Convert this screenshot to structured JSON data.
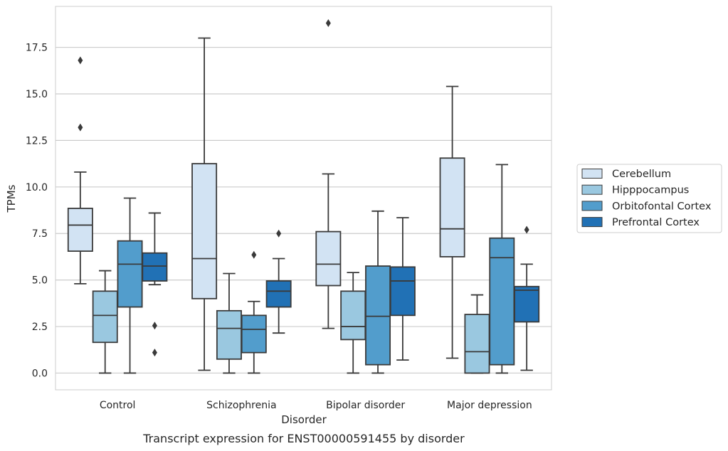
{
  "caption": "Transcript expression for ENST00000591455 by disorder",
  "colors": {
    "Cerebellum": "#d2e3f3",
    "Hipppocampus": "#9ac8e0",
    "Orbitofontal Cortex": "#529dcc",
    "Prefrontal Cortex": "#2171b5",
    "edge": "#3a3a3a",
    "grid": "#cccccc",
    "frame": "#cccccc"
  },
  "chart_data": {
    "type": "box",
    "xlabel": "Disorder",
    "ylabel": "TPMs",
    "ylim": [
      -0.9,
      19.7
    ],
    "yticks": [
      0.0,
      2.5,
      5.0,
      7.5,
      10.0,
      12.5,
      15.0,
      17.5
    ],
    "ytick_labels": [
      "0.0",
      "2.5",
      "5.0",
      "7.5",
      "10.0",
      "12.5",
      "15.0",
      "17.5"
    ],
    "grid": true,
    "legend_position": "right",
    "categories": [
      "Control",
      "Schizophrenia",
      "Bipolar disorder",
      "Major depression"
    ],
    "series": [
      {
        "name": "Cerebellum",
        "boxes": [
          {
            "whislo": 4.8,
            "q1": 6.55,
            "med": 7.95,
            "q3": 8.85,
            "whishi": 10.8,
            "fliers": [
              13.2,
              16.8
            ]
          },
          {
            "whislo": 0.15,
            "q1": 4.0,
            "med": 6.15,
            "q3": 11.25,
            "whishi": 18.0,
            "fliers": []
          },
          {
            "whislo": 2.4,
            "q1": 4.7,
            "med": 5.85,
            "q3": 7.6,
            "whishi": 10.7,
            "fliers": [
              18.8
            ]
          },
          {
            "whislo": 0.8,
            "q1": 6.25,
            "med": 7.75,
            "q3": 11.55,
            "whishi": 15.4,
            "fliers": []
          }
        ]
      },
      {
        "name": "Hipppocampus",
        "boxes": [
          {
            "whislo": 0.0,
            "q1": 1.65,
            "med": 3.1,
            "q3": 4.4,
            "whishi": 5.5,
            "fliers": []
          },
          {
            "whislo": 0.0,
            "q1": 0.75,
            "med": 2.4,
            "q3": 3.35,
            "whishi": 5.35,
            "fliers": []
          },
          {
            "whislo": 0.0,
            "q1": 1.8,
            "med": 2.5,
            "q3": 4.4,
            "whishi": 5.4,
            "fliers": []
          },
          {
            "whislo": 0.0,
            "q1": 0.0,
            "med": 1.15,
            "q3": 3.15,
            "whishi": 4.2,
            "fliers": []
          }
        ]
      },
      {
        "name": "Orbitofontal Cortex",
        "boxes": [
          {
            "whislo": 0.0,
            "q1": 3.55,
            "med": 5.85,
            "q3": 7.1,
            "whishi": 9.4,
            "fliers": []
          },
          {
            "whislo": 0.0,
            "q1": 1.1,
            "med": 2.35,
            "q3": 3.1,
            "whishi": 3.85,
            "fliers": [
              6.35
            ]
          },
          {
            "whislo": 0.0,
            "q1": 0.45,
            "med": 3.05,
            "q3": 5.75,
            "whishi": 8.7,
            "fliers": []
          },
          {
            "whislo": 0.0,
            "q1": 0.45,
            "med": 6.2,
            "q3": 7.25,
            "whishi": 11.2,
            "fliers": []
          }
        ]
      },
      {
        "name": "Prefrontal Cortex",
        "boxes": [
          {
            "whislo": 4.75,
            "q1": 4.95,
            "med": 5.75,
            "q3": 6.45,
            "whishi": 8.6,
            "fliers": [
              2.55,
              1.1
            ]
          },
          {
            "whislo": 2.15,
            "q1": 3.55,
            "med": 4.4,
            "q3": 4.95,
            "whishi": 6.15,
            "fliers": [
              7.5
            ]
          },
          {
            "whislo": 0.7,
            "q1": 3.1,
            "med": 4.95,
            "q3": 5.7,
            "whishi": 8.35,
            "fliers": []
          },
          {
            "whislo": 0.15,
            "q1": 2.75,
            "med": 4.45,
            "q3": 4.65,
            "whishi": 5.85,
            "fliers": [
              7.7
            ]
          }
        ]
      }
    ]
  }
}
